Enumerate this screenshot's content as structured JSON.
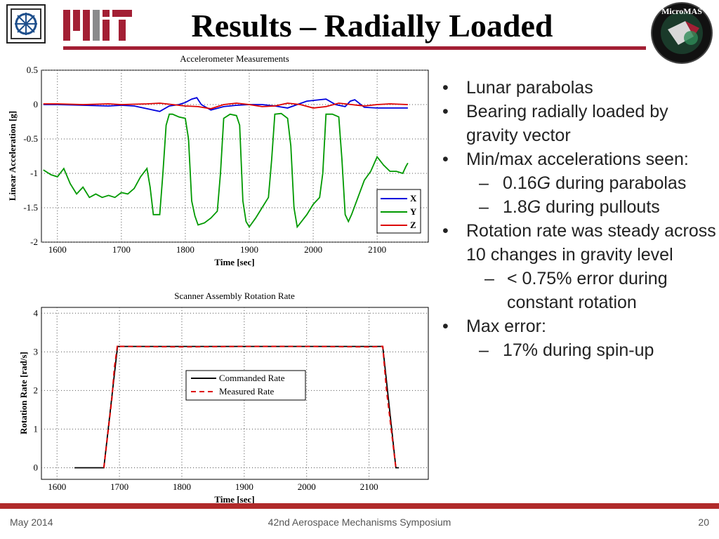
{
  "slide": {
    "title": "Results – Radially Loaded",
    "footer_left": "May 2014",
    "footer_center": "42nd Aerospace Mechanisms Symposium",
    "footer_right": "20",
    "logo_mit": "MIT",
    "logo_micromas": "MicroMAS",
    "logo_micromas_ring": "MIT LINCOLN LABORATORY"
  },
  "bullets": [
    {
      "level": 1,
      "html": "Lunar parabolas"
    },
    {
      "level": 1,
      "html": "Bearing radially loaded by gravity vector"
    },
    {
      "level": 1,
      "html": "Min/max accelerations seen:"
    },
    {
      "level": 2,
      "html": "0.16<i>G</i> during parabolas"
    },
    {
      "level": 2,
      "html": "1.8<i>G</i> during pullouts"
    },
    {
      "level": 1,
      "html": "Rotation rate was steady across 10 changes in gravity level"
    },
    {
      "level": 3,
      "html": "&lt; 0.75% error during constant rotation"
    },
    {
      "level": 1,
      "html": "Max error:"
    },
    {
      "level": 2,
      "html": "17% during spin-up"
    }
  ],
  "chart_data": [
    {
      "type": "line",
      "title": "Accelerometer Measurements",
      "xlabel": "Time [sec]",
      "ylabel": "Linear Acceleration [g]",
      "xlim": [
        1575,
        2180
      ],
      "ylim": [
        -2,
        0.5
      ],
      "xticks": [
        1600,
        1700,
        1800,
        1900,
        2000,
        2100
      ],
      "yticks": [
        0.5,
        0,
        -0.5,
        -1,
        -1.5,
        -2
      ],
      "ytick_labels": [
        "0.5",
        "0",
        "-0.5",
        "-1",
        "-1.5",
        "-2"
      ],
      "grid": true,
      "legend_position": "bottom-right",
      "series": [
        {
          "name": "X",
          "color": "#0000dd",
          "x": [
            1578,
            1600,
            1640,
            1680,
            1700,
            1720,
            1740,
            1760,
            1775,
            1790,
            1800,
            1810,
            1818,
            1825,
            1840,
            1860,
            1880,
            1900,
            1920,
            1940,
            1960,
            1975,
            1990,
            2010,
            2020,
            2035,
            2050,
            2058,
            2065,
            2080,
            2100,
            2120,
            2148
          ],
          "y": [
            0,
            0,
            -0.01,
            -0.02,
            -0.01,
            -0.02,
            -0.06,
            -0.1,
            -0.02,
            0,
            0.03,
            0.08,
            0.1,
            0,
            -0.08,
            -0.03,
            -0.01,
            0,
            0,
            -0.02,
            -0.05,
            0,
            0.05,
            0.07,
            0.08,
            0,
            -0.03,
            0.05,
            0.07,
            -0.04,
            -0.05,
            -0.05,
            -0.05
          ]
        },
        {
          "name": "Y",
          "color": "#009900",
          "x": [
            1578,
            1590,
            1600,
            1610,
            1620,
            1630,
            1640,
            1650,
            1660,
            1670,
            1680,
            1690,
            1700,
            1710,
            1720,
            1730,
            1740,
            1745,
            1750,
            1755,
            1760,
            1765,
            1770,
            1775,
            1780,
            1790,
            1800,
            1805,
            1810,
            1815,
            1820,
            1830,
            1840,
            1850,
            1855,
            1860,
            1870,
            1880,
            1885,
            1890,
            1895,
            1900,
            1910,
            1920,
            1930,
            1935,
            1940,
            1950,
            1960,
            1965,
            1970,
            1975,
            1980,
            1990,
            2000,
            2010,
            2015,
            2020,
            2030,
            2040,
            2045,
            2050,
            2055,
            2060,
            2070,
            2080,
            2090,
            2100,
            2110,
            2120,
            2130,
            2140,
            2145,
            2148
          ],
          "y": [
            -0.95,
            -1.02,
            -1.05,
            -0.93,
            -1.15,
            -1.3,
            -1.2,
            -1.35,
            -1.3,
            -1.35,
            -1.32,
            -1.35,
            -1.28,
            -1.3,
            -1.22,
            -1.05,
            -0.93,
            -1.2,
            -1.6,
            -1.6,
            -1.6,
            -1.0,
            -0.3,
            -0.14,
            -0.14,
            -0.18,
            -0.2,
            -0.5,
            -1.4,
            -1.62,
            -1.75,
            -1.72,
            -1.65,
            -1.55,
            -1.0,
            -0.2,
            -0.14,
            -0.16,
            -0.3,
            -1.4,
            -1.7,
            -1.78,
            -1.65,
            -1.5,
            -1.35,
            -0.8,
            -0.14,
            -0.13,
            -0.2,
            -0.6,
            -1.5,
            -1.78,
            -1.72,
            -1.6,
            -1.45,
            -1.35,
            -1.0,
            -0.14,
            -0.14,
            -0.18,
            -0.8,
            -1.6,
            -1.7,
            -1.6,
            -1.35,
            -1.1,
            -0.97,
            -0.76,
            -0.88,
            -0.97,
            -0.97,
            -1.0,
            -0.9,
            -0.85
          ]
        },
        {
          "name": "Z",
          "color": "#dd0000",
          "x": [
            1578,
            1600,
            1640,
            1680,
            1700,
            1740,
            1760,
            1780,
            1800,
            1820,
            1840,
            1860,
            1880,
            1900,
            1920,
            1940,
            1960,
            1980,
            2000,
            2020,
            2040,
            2060,
            2080,
            2100,
            2120,
            2148
          ],
          "y": [
            0.01,
            0.01,
            0.0,
            0.01,
            0.0,
            0.01,
            0.02,
            0.0,
            -0.02,
            -0.03,
            -0.06,
            0.0,
            0.02,
            0.0,
            -0.03,
            -0.02,
            0.02,
            0.0,
            -0.05,
            -0.03,
            0.02,
            0.0,
            -0.02,
            0.0,
            0.01,
            0.0
          ]
        }
      ]
    },
    {
      "type": "line",
      "title": "Scanner Assembly Rotation Rate",
      "xlabel": "Time [sec]",
      "ylabel": "Rotation Rate [rad/s]",
      "xlim": [
        1575,
        2195
      ],
      "ylim": [
        -0.3,
        4.15
      ],
      "xticks": [
        1600,
        1700,
        1800,
        1900,
        2000,
        2100
      ],
      "yticks": [
        0,
        1,
        2,
        3,
        4
      ],
      "grid": true,
      "legend_position": "middle-right",
      "series": [
        {
          "name": "Commanded Rate",
          "color": "#000000",
          "dash": false,
          "x": [
            1628,
            1675,
            1697,
            2122,
            2143,
            2148
          ],
          "y": [
            0,
            0,
            3.14,
            3.14,
            0,
            0
          ]
        },
        {
          "name": "Measured Rate",
          "color": "#dd0000",
          "dash": true,
          "x": [
            1675,
            1688,
            1692,
            1697,
            1700,
            1800,
            1900,
            2000,
            2100,
            2122,
            2128,
            2143
          ],
          "y": [
            0.0,
            1.8,
            2.6,
            3.18,
            3.14,
            3.13,
            3.14,
            3.14,
            3.13,
            3.14,
            2.0,
            0.0
          ]
        }
      ]
    }
  ]
}
